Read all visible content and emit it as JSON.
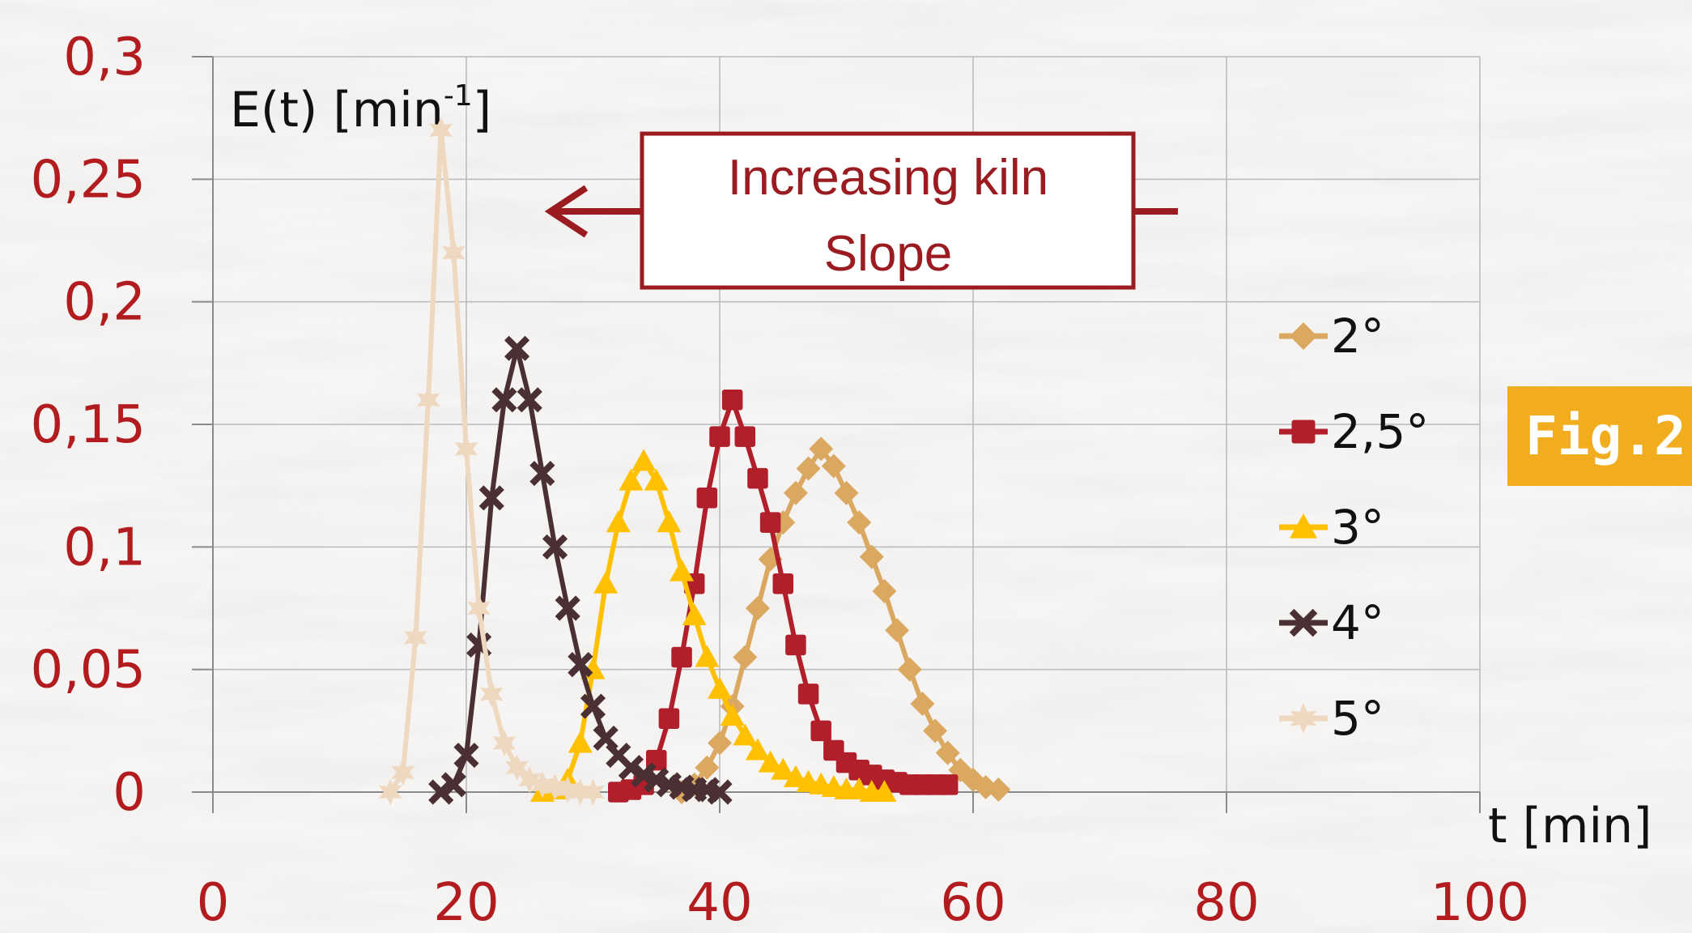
{
  "badge": {
    "label": "Fig.2",
    "color": "#f2ad1f"
  },
  "annotation": {
    "line1": "Increasing kiln",
    "line2": "Slope",
    "color": "#9b1c20"
  },
  "chart_data": {
    "type": "scatter",
    "title": "",
    "xlabel": "t [min]",
    "ylabel_main": "E(t) [min",
    "ylabel_sup": "-1",
    "ylabel_end": "]",
    "xlim": [
      0,
      100
    ],
    "ylim": [
      0,
      0.3
    ],
    "x_ticks": [
      "0",
      "20",
      "40",
      "60",
      "80",
      "100"
    ],
    "y_ticks": [
      "0",
      "0,05",
      "0,1",
      "0,15",
      "0,2",
      "0,25",
      "0,3"
    ],
    "grid": true,
    "legend_position": "right",
    "tick_color": "#b21c1f",
    "series": [
      {
        "name": "2°",
        "color": "#dba862",
        "marker": "diamond",
        "x": [
          37,
          38,
          39,
          40,
          41,
          42,
          43,
          44,
          45,
          46,
          47,
          48,
          49,
          50,
          51,
          52,
          53,
          54,
          55,
          56,
          57,
          58,
          59,
          60,
          61,
          62
        ],
        "y": [
          0,
          0.003,
          0.01,
          0.02,
          0.035,
          0.055,
          0.075,
          0.095,
          0.11,
          0.122,
          0.132,
          0.14,
          0.133,
          0.122,
          0.11,
          0.096,
          0.082,
          0.066,
          0.05,
          0.036,
          0.025,
          0.016,
          0.009,
          0.005,
          0.002,
          0.001
        ]
      },
      {
        "name": "2,5°",
        "color": "#b01f2a",
        "marker": "square",
        "x": [
          32,
          33,
          34,
          35,
          36,
          37,
          38,
          39,
          40,
          41,
          42,
          43,
          44,
          45,
          46,
          47,
          48,
          49,
          50,
          51,
          52,
          53,
          54,
          55,
          56,
          57,
          58
        ],
        "y": [
          0,
          0.001,
          0.003,
          0.013,
          0.03,
          0.055,
          0.085,
          0.12,
          0.145,
          0.16,
          0.145,
          0.128,
          0.11,
          0.085,
          0.06,
          0.04,
          0.025,
          0.017,
          0.012,
          0.009,
          0.007,
          0.005,
          0.004,
          0.003,
          0.003,
          0.003,
          0.003
        ]
      },
      {
        "name": "3°",
        "color": "#ffc000",
        "marker": "triangle",
        "x": [
          26,
          27,
          28,
          29,
          30,
          31,
          32,
          33,
          34,
          35,
          36,
          37,
          38,
          39,
          40,
          41,
          42,
          43,
          44,
          45,
          46,
          47,
          48,
          49,
          50,
          51,
          52,
          53
        ],
        "y": [
          0,
          0.001,
          0.005,
          0.02,
          0.05,
          0.085,
          0.11,
          0.127,
          0.135,
          0.127,
          0.11,
          0.09,
          0.072,
          0.055,
          0.042,
          0.031,
          0.023,
          0.017,
          0.012,
          0.009,
          0.006,
          0.004,
          0.003,
          0.002,
          0.001,
          0.001,
          0,
          0
        ]
      },
      {
        "name": "4°",
        "color": "#4a3032",
        "marker": "x",
        "x": [
          18,
          19,
          20,
          21,
          22,
          23,
          24,
          25,
          26,
          27,
          28,
          29,
          30,
          31,
          32,
          33,
          34,
          35,
          36,
          37,
          38,
          39,
          40
        ],
        "y": [
          0,
          0.003,
          0.015,
          0.06,
          0.12,
          0.16,
          0.181,
          0.16,
          0.13,
          0.1,
          0.075,
          0.052,
          0.035,
          0.022,
          0.015,
          0.01,
          0.007,
          0.005,
          0.003,
          0.002,
          0.001,
          0.001,
          0
        ]
      },
      {
        "name": "5°",
        "color": "#eed8c0",
        "marker": "star",
        "x": [
          14,
          15,
          16,
          17,
          18,
          19,
          20,
          21,
          22,
          23,
          24,
          25,
          26,
          27,
          28,
          29,
          30
        ],
        "y": [
          0,
          0.008,
          0.063,
          0.16,
          0.27,
          0.22,
          0.14,
          0.075,
          0.04,
          0.02,
          0.01,
          0.005,
          0.003,
          0.002,
          0.001,
          0,
          0
        ]
      }
    ]
  }
}
